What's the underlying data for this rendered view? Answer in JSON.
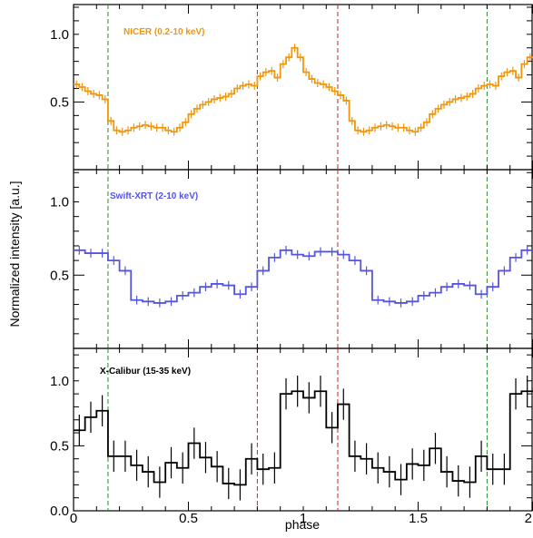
{
  "chart_data": {
    "type": "line",
    "xlabel": "phase",
    "ylabel": "Normalized intensity [a.u.]",
    "xlim": [
      0,
      2
    ],
    "x_ticks": [
      "0",
      "0.5",
      "1",
      "1.5",
      "2"
    ],
    "ylim": [
      0,
      1.22
    ],
    "bin_width": 0.05,
    "vlines": [
      {
        "x": 0.15,
        "color": "#2e8b2e",
        "style": "dashed"
      },
      {
        "x": 0.8,
        "color": "#cc2222",
        "style": "dashed"
      },
      {
        "x": 1.15,
        "color": "#cc2222",
        "style": "dashed"
      },
      {
        "x": 1.8,
        "color": "#2e8b2e",
        "style": "dashed"
      }
    ],
    "panels": [
      {
        "name": "NICER (0.2-10 keV)",
        "color": "#f0960a",
        "y_ticks": [
          "1.0",
          "0.5"
        ],
        "y_tick_values": [
          1.0,
          0.5
        ],
        "bin_width": 0.025,
        "values": [
          0.63,
          0.61,
          0.58,
          0.56,
          0.55,
          0.52,
          0.36,
          0.29,
          0.28,
          0.29,
          0.31,
          0.32,
          0.33,
          0.32,
          0.31,
          0.31,
          0.29,
          0.28,
          0.31,
          0.35,
          0.41,
          0.45,
          0.48,
          0.5,
          0.52,
          0.53,
          0.54,
          0.56,
          0.6,
          0.62,
          0.63,
          0.62,
          0.69,
          0.72,
          0.73,
          0.68,
          0.78,
          0.83,
          0.9,
          0.83,
          0.72,
          0.67,
          0.64,
          0.63,
          0.61,
          0.58,
          0.55,
          0.51,
          0.36,
          0.29,
          0.28,
          0.29,
          0.31,
          0.32,
          0.33,
          0.32,
          0.31,
          0.31,
          0.29,
          0.28,
          0.31,
          0.35,
          0.41,
          0.45,
          0.48,
          0.5,
          0.52,
          0.53,
          0.54,
          0.56,
          0.6,
          0.62,
          0.63,
          0.62,
          0.69,
          0.72,
          0.73,
          0.68,
          0.78,
          0.83
        ],
        "error": 0.03
      },
      {
        "name": "Swift-XRT (2-10 keV)",
        "color": "#5555dd",
        "y_ticks": [
          "1.0",
          "0.5"
        ],
        "y_tick_values": [
          1.0,
          0.5
        ],
        "bin_width": 0.05,
        "values": [
          0.67,
          0.65,
          0.65,
          0.6,
          0.53,
          0.33,
          0.32,
          0.31,
          0.32,
          0.36,
          0.38,
          0.42,
          0.44,
          0.43,
          0.37,
          0.42,
          0.53,
          0.62,
          0.67,
          0.64,
          0.63,
          0.66,
          0.66,
          0.64,
          0.6,
          0.53,
          0.33,
          0.32,
          0.31,
          0.32,
          0.36,
          0.38,
          0.42,
          0.44,
          0.43,
          0.37,
          0.42,
          0.53,
          0.62,
          0.67
        ],
        "error": 0.03
      },
      {
        "name": "X-Calibur (15-35 keV)",
        "color": "#000000",
        "y_ticks": [
          "1.0",
          "0.5",
          "0.0"
        ],
        "y_tick_values": [
          1.0,
          0.5,
          0.0
        ],
        "bin_width": 0.05,
        "values": [
          0.62,
          0.72,
          0.77,
          0.42,
          0.42,
          0.35,
          0.3,
          0.22,
          0.37,
          0.33,
          0.52,
          0.41,
          0.34,
          0.21,
          0.2,
          0.4,
          0.32,
          0.33,
          0.9,
          0.92,
          0.87,
          0.92,
          0.64,
          0.82,
          0.42,
          0.4,
          0.33,
          0.3,
          0.24,
          0.36,
          0.35,
          0.48,
          0.3,
          0.23,
          0.22,
          0.42,
          0.32,
          0.32,
          0.9,
          0.92
        ],
        "error": 0.12
      }
    ]
  }
}
